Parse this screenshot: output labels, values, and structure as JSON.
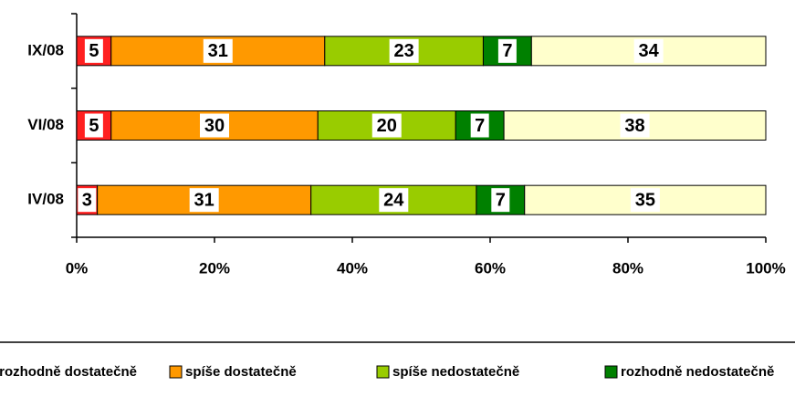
{
  "chart_data": {
    "type": "stacked-bar-horizontal",
    "categories": [
      "IX/08",
      "VI/08",
      "IV/08"
    ],
    "series": [
      {
        "name": "rozhodně dostatečně",
        "color": "#ff2020",
        "values": [
          5,
          5,
          3
        ]
      },
      {
        "name": "spíše dostatečně",
        "color": "#ff9900",
        "values": [
          31,
          30,
          31
        ]
      },
      {
        "name": "spíše nedostatečně",
        "color": "#99cc00",
        "values": [
          23,
          20,
          24
        ]
      },
      {
        "name": "rozhodně nedostatečně",
        "color": "#008000",
        "values": [
          7,
          7,
          7
        ]
      },
      {
        "color": "#ffffcc",
        "values": [
          34,
          38,
          35
        ]
      }
    ],
    "xlim": [
      0,
      100
    ],
    "xticks": [
      {
        "value": 0,
        "label": "0%"
      },
      {
        "value": 20,
        "label": "20%"
      },
      {
        "value": 40,
        "label": "40%"
      },
      {
        "value": 60,
        "label": "60%"
      },
      {
        "value": 80,
        "label": "80%"
      },
      {
        "value": 100,
        "label": "100%"
      }
    ]
  }
}
